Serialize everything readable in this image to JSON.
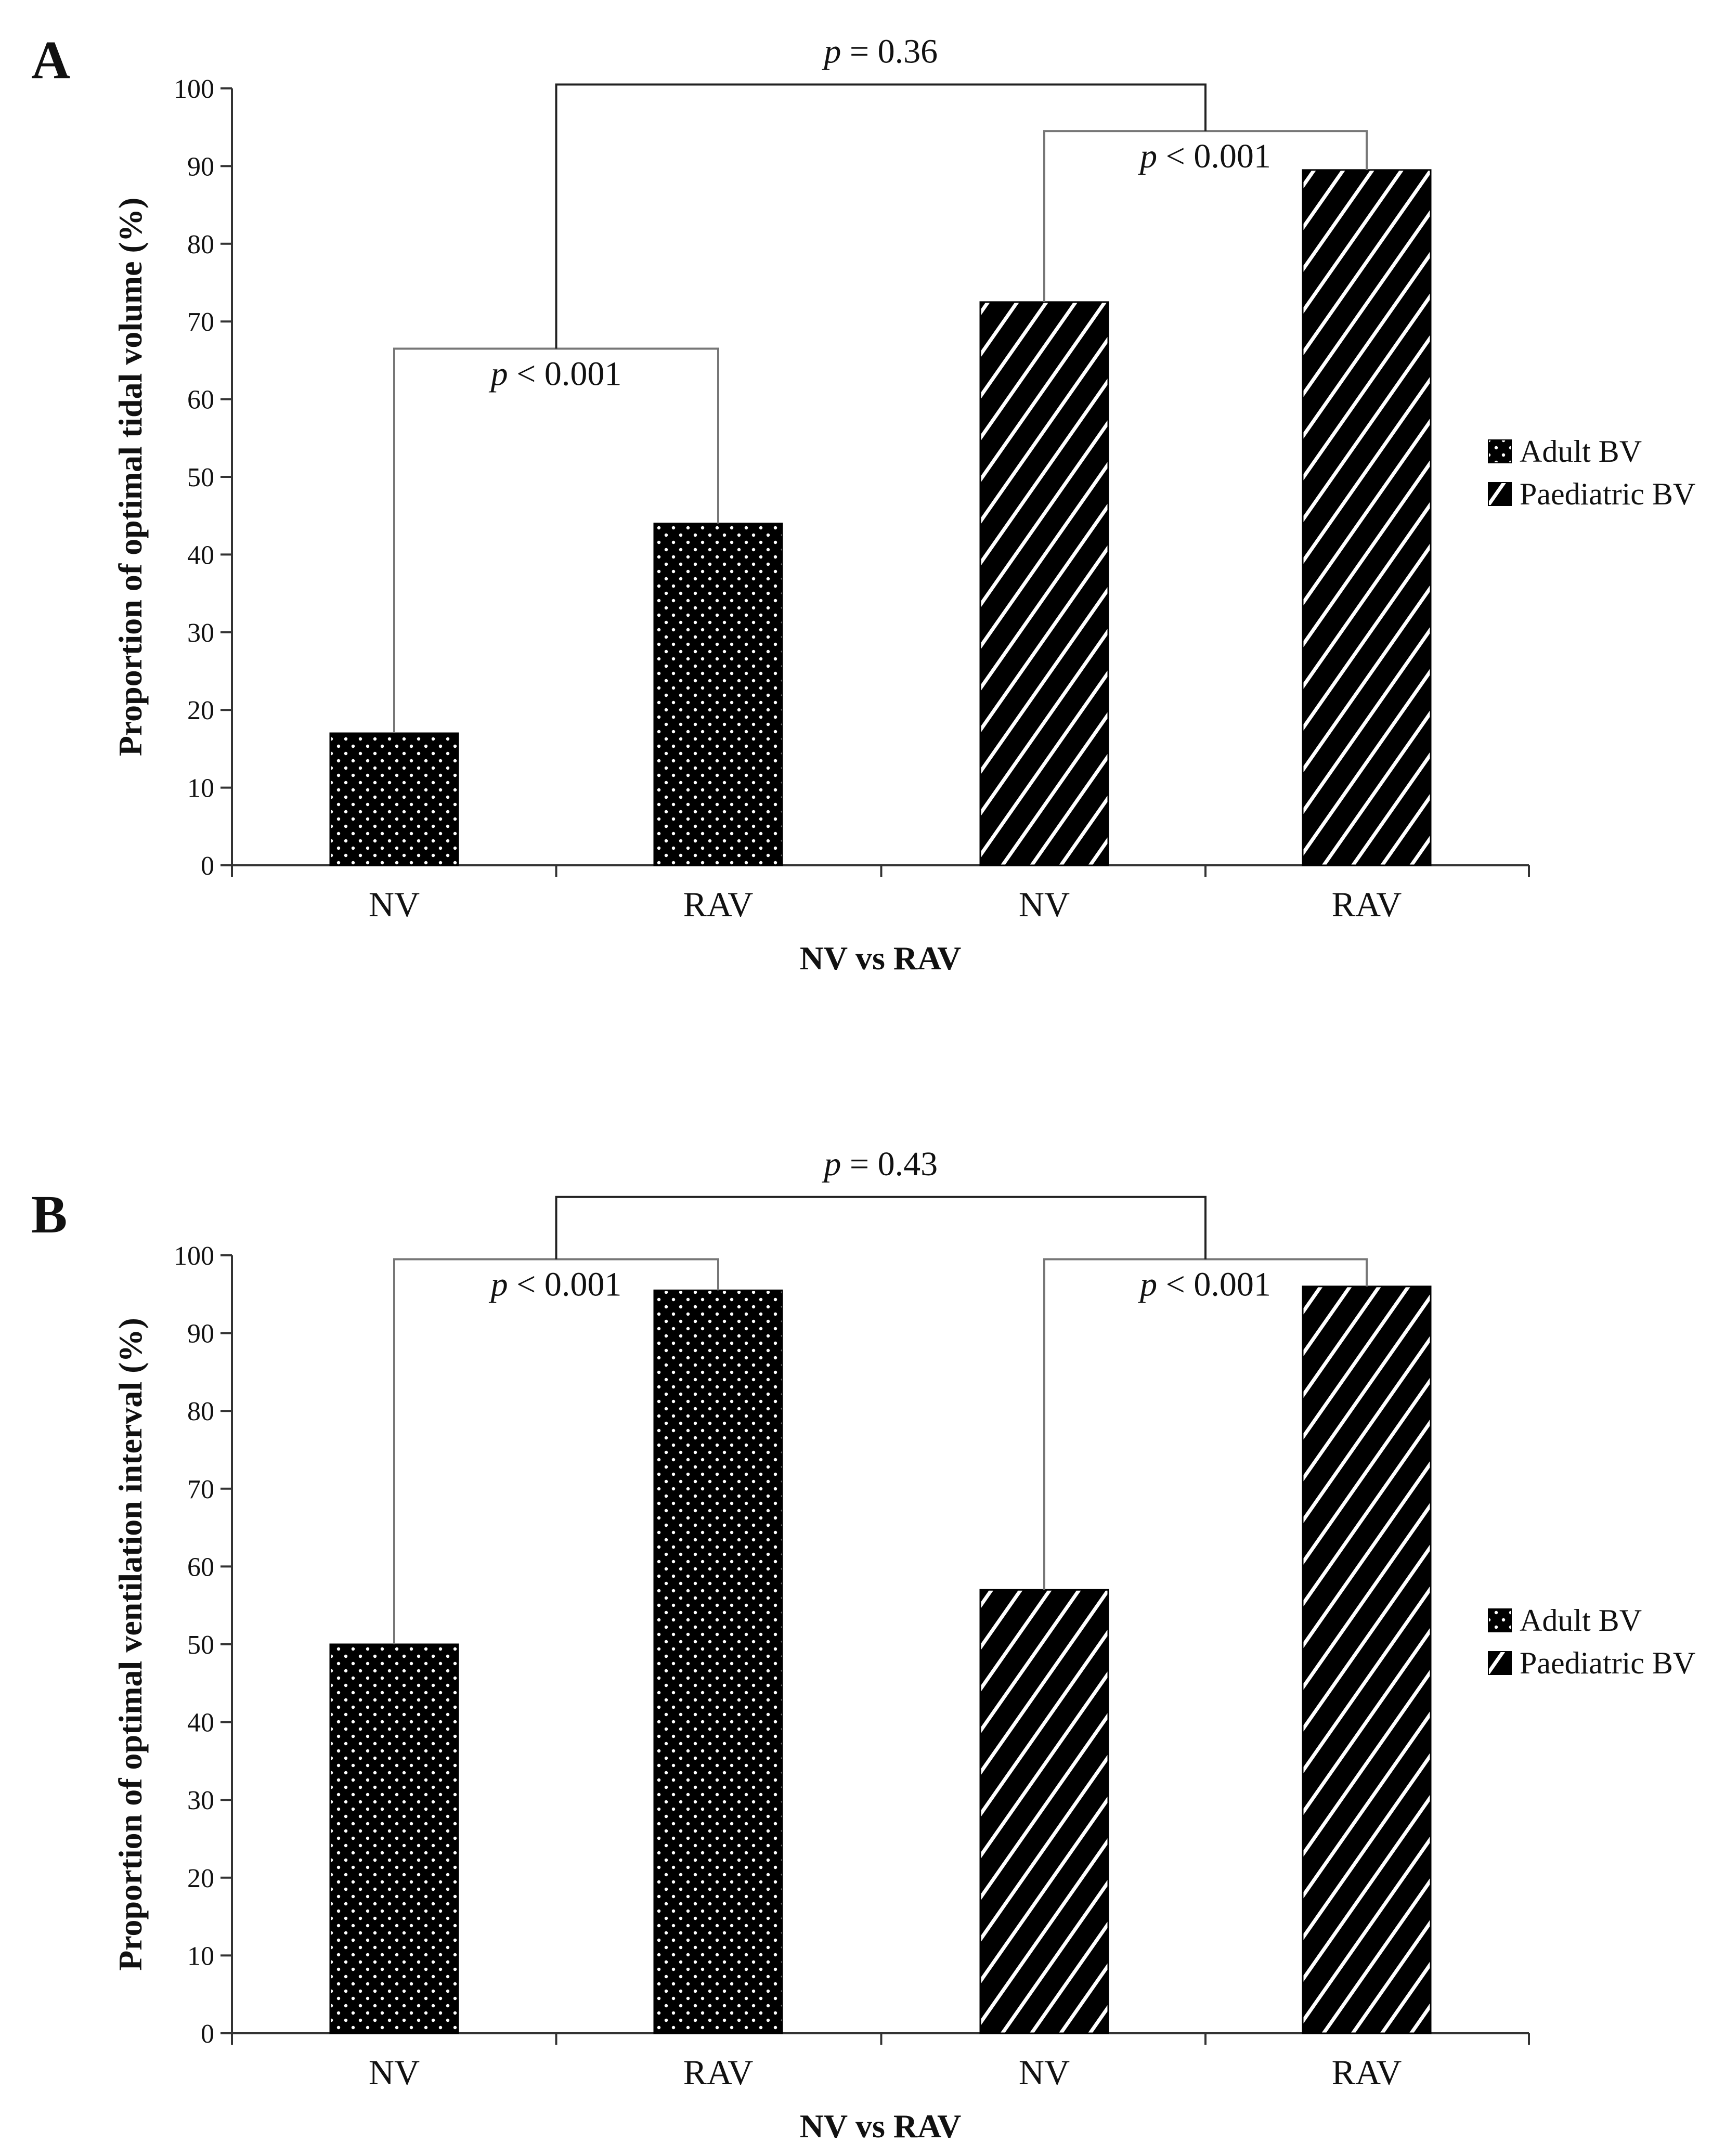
{
  "chart_data": [
    {
      "panel": "A",
      "type": "bar",
      "categories": [
        "NV",
        "RAV",
        "NV",
        "RAV"
      ],
      "values": [
        17,
        44,
        72.5,
        89.5
      ],
      "bar_series": [
        "Adult BV",
        "Adult BV",
        "Paediatric BV",
        "Paediatric BV"
      ],
      "legend": [
        "Adult BV",
        "Paediatric BV"
      ],
      "xlabel": "NV vs RAV",
      "ylabel": "Proportion of optimal tidal volume (%)",
      "ylim": [
        0,
        100
      ],
      "yticks": [
        "0",
        "10",
        "20",
        "30",
        "40",
        "50",
        "60",
        "70",
        "80",
        "90",
        "100"
      ],
      "comparisons": [
        {
          "from": 0,
          "to": 1,
          "level": 66.5,
          "text": "p < 0.001"
        },
        {
          "from": 2,
          "to": 3,
          "level": 94.5,
          "text": "p < 0.001"
        },
        {
          "from": 0.5,
          "to": 2.5,
          "level": 100.5,
          "text": "p = 0.36"
        }
      ]
    },
    {
      "panel": "B",
      "type": "bar",
      "categories": [
        "NV",
        "RAV",
        "NV",
        "RAV"
      ],
      "values": [
        50,
        95.5,
        57,
        96
      ],
      "bar_series": [
        "Adult BV",
        "Adult BV",
        "Paediatric BV",
        "Paediatric BV"
      ],
      "legend": [
        "Adult BV",
        "Paediatric BV"
      ],
      "xlabel": "NV vs RAV",
      "ylabel": "Proportion of optimal ventilation interval (%)",
      "ylim": [
        0,
        100
      ],
      "yticks": [
        "0",
        "10",
        "20",
        "30",
        "40",
        "50",
        "60",
        "70",
        "80",
        "90",
        "100"
      ],
      "comparisons": [
        {
          "from": 0,
          "to": 1,
          "level": 99.5,
          "text": "p < 0.001"
        },
        {
          "from": 2,
          "to": 3,
          "level": 99.5,
          "text": "p < 0.001"
        },
        {
          "from": 0.5,
          "to": 2.5,
          "level": 107.5,
          "text": "p = 0.43"
        }
      ]
    }
  ]
}
